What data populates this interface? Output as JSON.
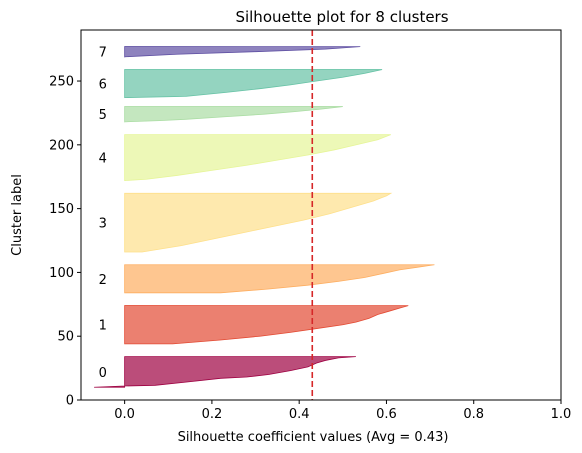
{
  "chart_data": {
    "type": "area",
    "title": "Silhouette plot for 8 clusters",
    "xlabel": "Silhouette coefficient values (Avg = 0.43)",
    "ylabel": "Cluster label",
    "xlim": [
      -0.1,
      1.0
    ],
    "ylim": [
      0,
      290
    ],
    "xticks": [
      0.0,
      0.2,
      0.4,
      0.6,
      0.8,
      1.0
    ],
    "xtick_labels": [
      "0.0",
      "0.2",
      "0.4",
      "0.6",
      "0.8",
      "1.0"
    ],
    "yticks": [
      0,
      50,
      100,
      150,
      200,
      250
    ],
    "ytick_labels": [
      "0",
      "50",
      "100",
      "150",
      "200",
      "250"
    ],
    "grid": false,
    "legend": "none",
    "average_line": {
      "x": 0.43,
      "color": "#d62728",
      "style": "dashed"
    },
    "clusters": [
      {
        "label": "0",
        "color": "#9e0142",
        "y_start": 10,
        "y_end": 34,
        "profile": [
          [
            0,
            -0.07
          ],
          [
            1,
            0.0
          ],
          [
            1.5,
            0.07
          ],
          [
            4,
            0.14
          ],
          [
            7,
            0.22
          ],
          [
            8,
            0.28
          ],
          [
            10,
            0.33
          ],
          [
            13,
            0.38
          ],
          [
            16,
            0.42
          ],
          [
            19,
            0.44
          ],
          [
            21,
            0.46
          ],
          [
            23,
            0.49
          ],
          [
            24,
            0.53
          ]
        ]
      },
      {
        "label": "1",
        "color": "#e34a33",
        "y_start": 44,
        "y_end": 74,
        "profile": [
          [
            0,
            0.11
          ],
          [
            3,
            0.22
          ],
          [
            6,
            0.31
          ],
          [
            9,
            0.38
          ],
          [
            12,
            0.44
          ],
          [
            15,
            0.5
          ],
          [
            17,
            0.53
          ],
          [
            20,
            0.56
          ],
          [
            23,
            0.58
          ],
          [
            26,
            0.61
          ],
          [
            28,
            0.63
          ],
          [
            30,
            0.65
          ]
        ]
      },
      {
        "label": "2",
        "color": "#fdae61",
        "y_start": 84,
        "y_end": 106,
        "profile": [
          [
            0,
            0.22
          ],
          [
            3,
            0.33
          ],
          [
            6,
            0.42
          ],
          [
            9,
            0.49
          ],
          [
            12,
            0.55
          ],
          [
            15,
            0.59
          ],
          [
            18,
            0.63
          ],
          [
            20,
            0.67
          ],
          [
            22,
            0.71
          ]
        ]
      },
      {
        "label": "3",
        "color": "#fee08b",
        "y_start": 116,
        "y_end": 162,
        "profile": [
          [
            0,
            0.04
          ],
          [
            5,
            0.13
          ],
          [
            10,
            0.2
          ],
          [
            15,
            0.27
          ],
          [
            20,
            0.34
          ],
          [
            25,
            0.41
          ],
          [
            30,
            0.47
          ],
          [
            35,
            0.52
          ],
          [
            40,
            0.57
          ],
          [
            44,
            0.6
          ],
          [
            46,
            0.61
          ]
        ]
      },
      {
        "label": "4",
        "color": "#e6f598",
        "y_start": 172,
        "y_end": 208,
        "profile": [
          [
            0,
            0.0
          ],
          [
            1,
            0.05
          ],
          [
            4,
            0.12
          ],
          [
            8,
            0.2
          ],
          [
            12,
            0.28
          ],
          [
            16,
            0.35
          ],
          [
            20,
            0.42
          ],
          [
            24,
            0.48
          ],
          [
            28,
            0.53
          ],
          [
            32,
            0.58
          ],
          [
            36,
            0.61
          ]
        ]
      },
      {
        "label": "5",
        "color": "#abdda4",
        "y_start": 218,
        "y_end": 230,
        "profile": [
          [
            0,
            0.0
          ],
          [
            1,
            0.08
          ],
          [
            2,
            0.14
          ],
          [
            4,
            0.23
          ],
          [
            6,
            0.32
          ],
          [
            8,
            0.39
          ],
          [
            10,
            0.45
          ],
          [
            12,
            0.5
          ]
        ]
      },
      {
        "label": "6",
        "color": "#66c2a5",
        "y_start": 237,
        "y_end": 259,
        "profile": [
          [
            0,
            0.0
          ],
          [
            1,
            0.14
          ],
          [
            4,
            0.23
          ],
          [
            7,
            0.31
          ],
          [
            10,
            0.38
          ],
          [
            13,
            0.44
          ],
          [
            16,
            0.5
          ],
          [
            19,
            0.55
          ],
          [
            22,
            0.59
          ]
        ]
      },
      {
        "label": "7",
        "color": "#5e4fa2",
        "y_start": 269,
        "y_end": 277,
        "profile": [
          [
            0,
            0.0
          ],
          [
            2,
            0.12
          ],
          [
            4,
            0.3
          ],
          [
            6,
            0.46
          ],
          [
            8,
            0.54
          ]
        ]
      }
    ]
  }
}
